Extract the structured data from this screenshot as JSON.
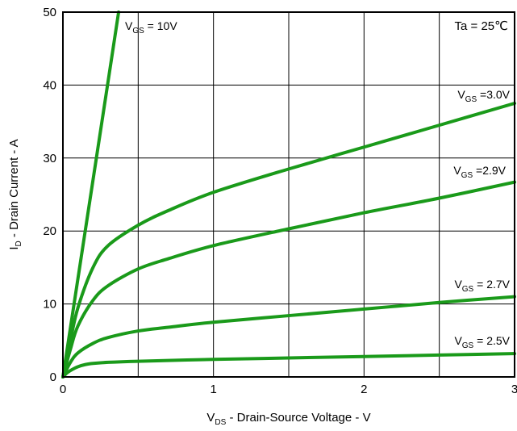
{
  "chart_data": {
    "type": "line",
    "title": "",
    "xlabel": {
      "main": "V",
      "sub": "DS",
      "rest": " - Drain-Source Voltage - V"
    },
    "ylabel": {
      "main": "I",
      "sub": "D",
      "rest": " - Drain Current - A"
    },
    "xlim": [
      0,
      3
    ],
    "ylim": [
      0,
      50
    ],
    "x_ticks": [
      0,
      1,
      2,
      3
    ],
    "x_tick_labels": [
      "0",
      "1",
      "2",
      "3"
    ],
    "x_minor_grid": [
      0.5,
      1.5,
      2.5
    ],
    "y_ticks": [
      0,
      10,
      20,
      30,
      40,
      50
    ],
    "y_tick_labels": [
      "0",
      "10",
      "20",
      "30",
      "40",
      "50"
    ],
    "grid": true,
    "line_color": "#1a9a1a",
    "annotation": "Ta = 25℃",
    "series": [
      {
        "name": "V_GS = 10V",
        "label_main": "V",
        "label_sub": "GS",
        "label_rest": " = 10V",
        "x": [
          0,
          0.1,
          0.2,
          0.3,
          0.37
        ],
        "y": [
          0,
          13.5,
          27,
          40.5,
          50
        ]
      },
      {
        "name": "V_GS =3.0V",
        "label_main": "V",
        "label_sub": "GS",
        "label_rest": " =3.0V",
        "x": [
          0,
          0.05,
          0.1,
          0.2,
          0.3,
          0.5,
          0.7,
          1.0,
          1.5,
          2.0,
          2.5,
          3.0
        ],
        "y": [
          0,
          5,
          9.5,
          15,
          18,
          20.8,
          22.8,
          25.3,
          28.5,
          31.5,
          34.5,
          37.5
        ]
      },
      {
        "name": "V_GS =2.9V",
        "label_main": "V",
        "label_sub": "GS",
        "label_rest": " =2.9V",
        "x": [
          0,
          0.05,
          0.1,
          0.2,
          0.3,
          0.5,
          0.7,
          1.0,
          1.5,
          2.0,
          2.5,
          3.0
        ],
        "y": [
          0,
          3.8,
          7,
          10.5,
          12.5,
          14.8,
          16.2,
          18,
          20.3,
          22.5,
          24.5,
          26.7
        ]
      },
      {
        "name": "V_GS = 2.7V",
        "label_main": "V",
        "label_sub": "GS",
        "label_rest": " = 2.7V",
        "x": [
          0,
          0.05,
          0.1,
          0.2,
          0.3,
          0.5,
          0.7,
          1.0,
          1.5,
          2.0,
          2.5,
          3.0
        ],
        "y": [
          0,
          2,
          3.3,
          4.6,
          5.4,
          6.3,
          6.8,
          7.5,
          8.4,
          9.3,
          10.2,
          11.0
        ]
      },
      {
        "name": "V_GS = 2.5V",
        "label_main": "V",
        "label_sub": "GS",
        "label_rest": " = 2.5V",
        "x": [
          0,
          0.03,
          0.06,
          0.1,
          0.15,
          0.2,
          0.3,
          0.5,
          1.0,
          1.5,
          2.0,
          2.5,
          3.0
        ],
        "y": [
          0,
          0.6,
          1.0,
          1.4,
          1.7,
          1.85,
          2.0,
          2.15,
          2.4,
          2.6,
          2.8,
          3.0,
          3.2
        ]
      }
    ]
  }
}
